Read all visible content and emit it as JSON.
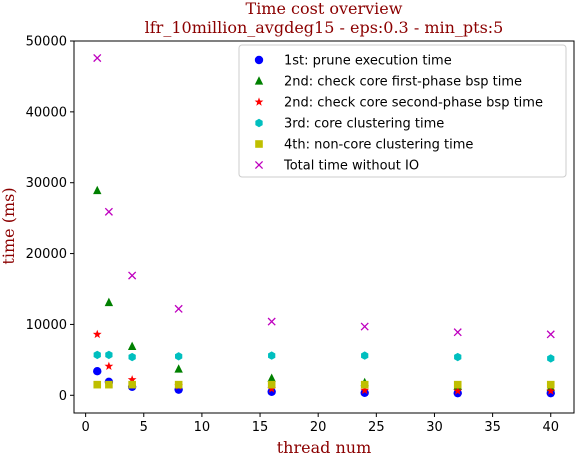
{
  "chart_data": {
    "type": "scatter",
    "title": "Time cost overview",
    "subtitle": "lfr_10million_avgdeg15 - eps:0.3 - min_pts:5",
    "xlabel": "thread num",
    "ylabel": "time (ms)",
    "xlim": [
      -1,
      42
    ],
    "ylim": [
      -2500,
      50000
    ],
    "xticks": [
      0,
      5,
      10,
      15,
      20,
      25,
      30,
      35,
      40
    ],
    "yticks": [
      0,
      10000,
      20000,
      30000,
      40000,
      50000
    ],
    "xtick_labels": [
      "0",
      "5",
      "10",
      "15",
      "20",
      "25",
      "30",
      "35",
      "40"
    ],
    "ytick_labels": [
      "0",
      "10000",
      "20000",
      "30000",
      "40000",
      "50000"
    ],
    "grid": false,
    "legend_position": "top-right",
    "x": [
      1,
      2,
      4,
      8,
      16,
      24,
      32,
      40
    ],
    "series": [
      {
        "name": "1st: prune execution time",
        "marker": "circle",
        "color": "#0000ff",
        "values": [
          3400,
          1900,
          1200,
          800,
          500,
          350,
          300,
          300
        ]
      },
      {
        "name": "2nd: check core first-phase bsp time",
        "marker": "triangle",
        "color": "#008000",
        "values": [
          28900,
          13100,
          6900,
          3700,
          2400,
          1800,
          1300,
          1100
        ]
      },
      {
        "name": "2nd: check core second-phase bsp time",
        "marker": "star",
        "color": "#ff0000",
        "values": [
          8600,
          4100,
          2200,
          1300,
          900,
          700,
          600,
          600
        ]
      },
      {
        "name": "3rd: core clustering time",
        "marker": "hexagon",
        "color": "#00bfbf",
        "values": [
          5700,
          5700,
          5400,
          5500,
          5600,
          5600,
          5400,
          5200
        ]
      },
      {
        "name": "4th: non-core clustering time",
        "marker": "square",
        "color": "#bfbf00",
        "values": [
          1500,
          1500,
          1500,
          1500,
          1500,
          1500,
          1500,
          1500
        ]
      },
      {
        "name": "Total time without IO",
        "marker": "x",
        "color": "#bf00bf",
        "values": [
          47600,
          25900,
          16900,
          12200,
          10400,
          9700,
          8900,
          8600
        ]
      }
    ]
  }
}
